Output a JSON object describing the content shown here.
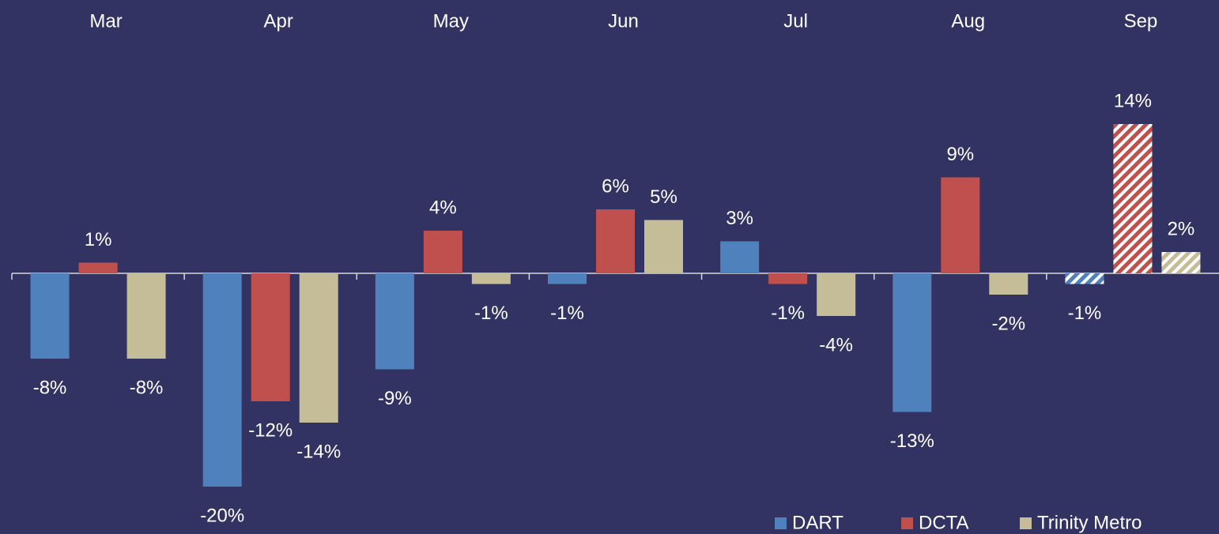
{
  "chart_data": {
    "type": "bar",
    "categories": [
      "Mar",
      "Apr",
      "May",
      "Jun",
      "Jul",
      "Aug",
      "Sep"
    ],
    "series": [
      {
        "name": "DART",
        "color": "#4f81bd",
        "values": [
          -8,
          -20,
          -9,
          -1,
          3,
          -13,
          -1
        ],
        "value_labels": [
          "-8%",
          "-20%",
          "-9%",
          "-1%",
          "3%",
          "-13%",
          "-1%"
        ]
      },
      {
        "name": "DCTA",
        "color": "#c0504d",
        "values": [
          1,
          -12,
          4,
          6,
          -1,
          9,
          14
        ],
        "value_labels": [
          "1%",
          "-12%",
          "4%",
          "6%",
          "-1%",
          "9%",
          "14%"
        ]
      },
      {
        "name": "Trinity Metro",
        "color": "#c4bd97",
        "values": [
          -8,
          -14,
          -1,
          5,
          -4,
          -2,
          2
        ],
        "value_labels": [
          "-8%",
          "-14%",
          "-1%",
          "5%",
          "-4%",
          "-2%",
          "2%"
        ]
      }
    ],
    "hatched": [
      false,
      false,
      false,
      false,
      false,
      false,
      true
    ],
    "legend": "bottom-right"
  }
}
